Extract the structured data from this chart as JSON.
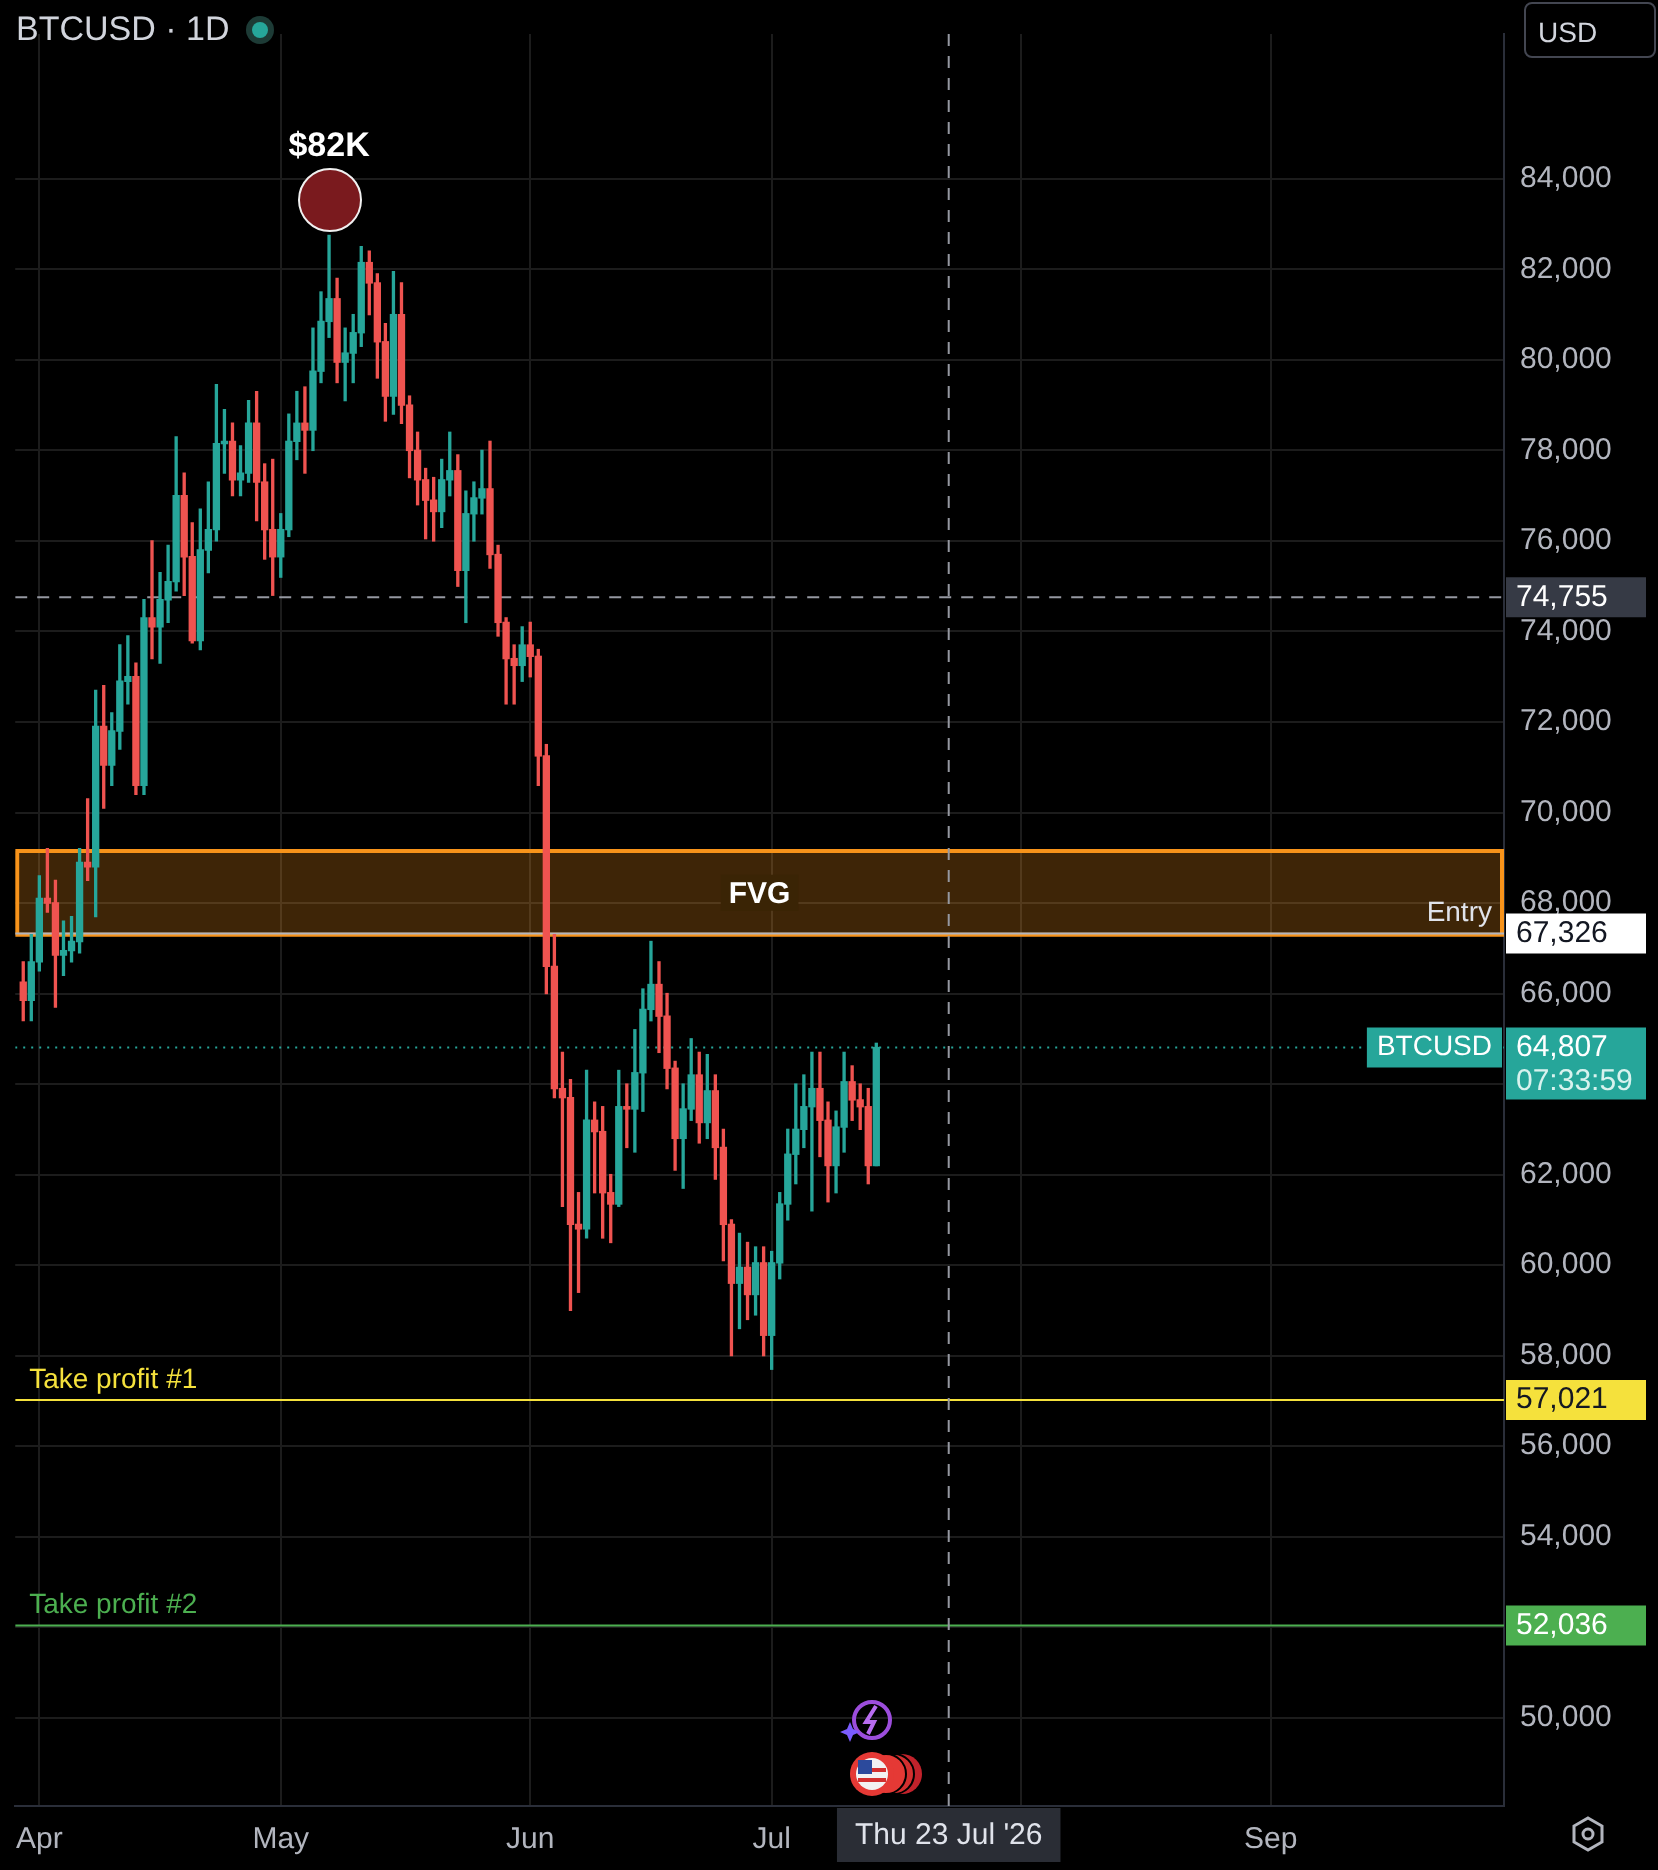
{
  "chart_data": {
    "type": "candlestick",
    "title": "BTCUSD · 1D",
    "x": [
      "2026-03-30",
      "2026-03-31",
      "2026-04-01",
      "2026-04-02",
      "2026-04-03",
      "2026-04-04",
      "2026-04-05",
      "2026-04-06",
      "2026-04-07",
      "2026-04-08",
      "2026-04-09",
      "2026-04-10",
      "2026-04-11",
      "2026-04-12",
      "2026-04-13",
      "2026-04-14",
      "2026-04-15",
      "2026-04-16",
      "2026-04-17",
      "2026-04-18",
      "2026-04-19",
      "2026-04-20",
      "2026-04-21",
      "2026-04-22",
      "2026-04-23",
      "2026-04-24",
      "2026-04-25",
      "2026-04-26",
      "2026-04-27",
      "2026-04-28",
      "2026-04-29",
      "2026-04-30",
      "2026-05-01",
      "2026-05-02",
      "2026-05-03",
      "2026-05-04",
      "2026-05-05",
      "2026-05-06",
      "2026-05-07",
      "2026-05-08",
      "2026-05-09",
      "2026-05-10",
      "2026-05-11",
      "2026-05-12",
      "2026-05-13",
      "2026-05-14",
      "2026-05-15",
      "2026-05-16",
      "2026-05-17",
      "2026-05-18",
      "2026-05-19",
      "2026-05-20",
      "2026-05-21",
      "2026-05-22",
      "2026-05-23",
      "2026-05-24",
      "2026-05-25",
      "2026-05-26",
      "2026-05-27",
      "2026-05-28",
      "2026-05-29",
      "2026-05-30",
      "2026-05-31",
      "2026-06-01",
      "2026-06-02",
      "2026-06-03",
      "2026-06-04",
      "2026-06-05",
      "2026-06-06",
      "2026-06-07",
      "2026-06-08",
      "2026-06-09",
      "2026-06-10",
      "2026-06-11",
      "2026-06-12",
      "2026-06-13",
      "2026-06-14",
      "2026-06-15",
      "2026-06-16",
      "2026-06-17",
      "2026-06-18",
      "2026-06-19",
      "2026-06-20",
      "2026-06-21",
      "2026-06-22",
      "2026-06-23",
      "2026-06-24",
      "2026-06-25",
      "2026-06-26",
      "2026-06-27",
      "2026-06-28",
      "2026-06-29",
      "2026-06-30",
      "2026-07-01",
      "2026-07-02",
      "2026-07-03",
      "2026-07-04",
      "2026-07-05",
      "2026-07-06",
      "2026-07-07",
      "2026-07-08",
      "2026-07-09",
      "2026-07-10",
      "2026-07-11",
      "2026-07-12",
      "2026-07-13",
      "2026-07-14"
    ],
    "ohlc": [
      [
        66250,
        66700,
        65400,
        65850
      ],
      [
        65850,
        67300,
        65400,
        66700
      ],
      [
        66700,
        68600,
        66500,
        68100
      ],
      [
        68100,
        69200,
        67800,
        68000
      ],
      [
        68000,
        68500,
        65700,
        66850
      ],
      [
        66850,
        67600,
        66400,
        66950
      ],
      [
        66950,
        67700,
        66700,
        67150
      ],
      [
        67150,
        69200,
        66900,
        68900
      ],
      [
        68900,
        70300,
        68500,
        68800
      ],
      [
        68800,
        72700,
        67700,
        71900
      ],
      [
        71900,
        72800,
        70100,
        71050
      ],
      [
        71050,
        72200,
        70600,
        71800
      ],
      [
        71800,
        73700,
        71400,
        72900
      ],
      [
        72900,
        73900,
        72400,
        73000
      ],
      [
        73000,
        73300,
        70400,
        70600
      ],
      [
        70600,
        74700,
        70400,
        74300
      ],
      [
        74300,
        76000,
        73400,
        74100
      ],
      [
        74100,
        75300,
        73300,
        74700
      ],
      [
        74700,
        75900,
        74200,
        75100
      ],
      [
        75100,
        78300,
        74900,
        77000
      ],
      [
        77000,
        77500,
        74800,
        75650
      ],
      [
        75650,
        76400,
        73750,
        73800
      ],
      [
        73800,
        76700,
        73600,
        75800
      ],
      [
        75800,
        77300,
        75300,
        76250
      ],
      [
        76250,
        79450,
        76000,
        78150
      ],
      [
        78150,
        78900,
        77500,
        78200
      ],
      [
        78200,
        78600,
        77000,
        77350
      ],
      [
        77350,
        78100,
        77000,
        77500
      ],
      [
        77500,
        79100,
        77300,
        78600
      ],
      [
        78600,
        79300,
        76450,
        77300
      ],
      [
        77300,
        77700,
        75600,
        76250
      ],
      [
        76250,
        77800,
        74800,
        75650
      ],
      [
        75650,
        76600,
        75200,
        76250
      ],
      [
        76250,
        78800,
        76100,
        78200
      ],
      [
        78200,
        79300,
        77800,
        78600
      ],
      [
        78600,
        79400,
        77500,
        78450
      ],
      [
        78450,
        80700,
        78000,
        79750
      ],
      [
        79750,
        81500,
        79500,
        80850
      ],
      [
        80850,
        82750,
        80500,
        81350
      ],
      [
        81350,
        81800,
        79500,
        79950
      ],
      [
        79950,
        80700,
        79100,
        80150
      ],
      [
        80150,
        81000,
        79500,
        80600
      ],
      [
        80600,
        82500,
        80300,
        82150
      ],
      [
        82150,
        82400,
        81000,
        81700
      ],
      [
        81700,
        81900,
        79600,
        80400
      ],
      [
        80400,
        80800,
        78650,
        79200
      ],
      [
        79200,
        81950,
        78800,
        81000
      ],
      [
        81000,
        81700,
        78600,
        79000
      ],
      [
        79000,
        79200,
        77400,
        78000
      ],
      [
        78000,
        78400,
        76800,
        77350
      ],
      [
        77350,
        77600,
        76050,
        76900
      ],
      [
        76900,
        77400,
        76000,
        76650
      ],
      [
        76650,
        77800,
        76300,
        77350
      ],
      [
        77350,
        78400,
        77000,
        77550
      ],
      [
        77550,
        77900,
        75000,
        75350
      ],
      [
        75350,
        77100,
        74200,
        76600
      ],
      [
        76600,
        77300,
        76000,
        76950
      ],
      [
        76950,
        78000,
        76600,
        77150
      ],
      [
        77150,
        78200,
        75400,
        75700
      ],
      [
        75700,
        75900,
        73900,
        74200
      ],
      [
        74200,
        74300,
        72400,
        73400
      ],
      [
        73400,
        73700,
        72400,
        73250
      ],
      [
        73250,
        74100,
        72900,
        73700
      ],
      [
        73700,
        74200,
        73000,
        73450
      ],
      [
        73450,
        73600,
        70600,
        71250
      ],
      [
        71250,
        71500,
        66000,
        66600
      ],
      [
        66600,
        67300,
        63700,
        63900
      ],
      [
        63900,
        64700,
        61300,
        63700
      ],
      [
        63700,
        64100,
        59000,
        60900
      ],
      [
        60900,
        61600,
        59400,
        60800
      ],
      [
        60800,
        64300,
        60600,
        63200
      ],
      [
        63200,
        63600,
        61600,
        62950
      ],
      [
        62950,
        63500,
        60600,
        61600
      ],
      [
        61600,
        62000,
        60500,
        61350
      ],
      [
        61350,
        64300,
        61300,
        63500
      ],
      [
        63500,
        64000,
        62600,
        63450
      ],
      [
        63450,
        65200,
        62500,
        64250
      ],
      [
        64250,
        66100,
        63400,
        65650
      ],
      [
        65650,
        67150,
        65400,
        66200
      ],
      [
        66200,
        66700,
        64700,
        65500
      ],
      [
        65500,
        66000,
        63900,
        64350
      ],
      [
        64350,
        64500,
        62100,
        62800
      ],
      [
        62800,
        64000,
        61700,
        63450
      ],
      [
        63450,
        65000,
        63200,
        64200
      ],
      [
        64200,
        64700,
        62700,
        63150
      ],
      [
        63150,
        64650,
        62800,
        63850
      ],
      [
        63850,
        64200,
        61900,
        62600
      ],
      [
        62600,
        63000,
        60100,
        60900
      ],
      [
        60900,
        61000,
        58000,
        59600
      ],
      [
        59600,
        60700,
        58600,
        59950
      ],
      [
        59950,
        60500,
        58800,
        59350
      ],
      [
        59350,
        60400,
        58900,
        60050
      ],
      [
        60050,
        60400,
        58000,
        58450
      ],
      [
        58450,
        60300,
        57700,
        60050
      ],
      [
        60050,
        61600,
        59700,
        61350
      ],
      [
        61350,
        63000,
        61000,
        62450
      ],
      [
        62450,
        64000,
        61800,
        63000
      ],
      [
        63000,
        64200,
        62600,
        63500
      ],
      [
        63500,
        64700,
        61200,
        63900
      ],
      [
        63900,
        64700,
        62400,
        63200
      ],
      [
        63200,
        63600,
        61400,
        62200
      ],
      [
        62200,
        63400,
        61600,
        63050
      ],
      [
        63050,
        64700,
        62500,
        64050
      ],
      [
        64050,
        64400,
        63200,
        63650
      ],
      [
        63650,
        64000,
        63000,
        63500
      ],
      [
        63500,
        63900,
        61800,
        62200
      ],
      [
        62200,
        64900,
        62200,
        64807
      ]
    ],
    "colors": [
      "#ef5350",
      "#26a69a",
      "#26a69a",
      "#ef5350",
      "#ef5350",
      "#26a69a",
      "#26a69a",
      "#26a69a",
      "#ef5350",
      "#26a69a",
      "#ef5350",
      "#26a69a",
      "#26a69a",
      "#26a69a",
      "#ef5350",
      "#26a69a",
      "#ef5350",
      "#26a69a",
      "#26a69a",
      "#26a69a",
      "#ef5350",
      "#ef5350",
      "#26a69a",
      "#26a69a",
      "#26a69a",
      "#26a69a",
      "#ef5350",
      "#26a69a",
      "#26a69a",
      "#ef5350",
      "#ef5350",
      "#ef5350",
      "#26a69a",
      "#26a69a",
      "#26a69a",
      "#ef5350",
      "#26a69a",
      "#26a69a",
      "#26a69a",
      "#ef5350",
      "#26a69a",
      "#26a69a",
      "#26a69a",
      "#ef5350",
      "#ef5350",
      "#ef5350",
      "#26a69a",
      "#ef5350",
      "#ef5350",
      "#ef5350",
      "#ef5350",
      "#ef5350",
      "#26a69a",
      "#26a69a",
      "#ef5350",
      "#26a69a",
      "#26a69a",
      "#26a69a",
      "#ef5350",
      "#ef5350",
      "#ef5350",
      "#ef5350",
      "#26a69a",
      "#ef5350",
      "#ef5350",
      "#ef5350",
      "#ef5350",
      "#ef5350",
      "#ef5350",
      "#ef5350",
      "#26a69a",
      "#ef5350",
      "#ef5350",
      "#ef5350",
      "#26a69a",
      "#ef5350",
      "#26a69a",
      "#26a69a",
      "#26a69a",
      "#ef5350",
      "#ef5350",
      "#ef5350",
      "#26a69a",
      "#26a69a",
      "#ef5350",
      "#26a69a",
      "#ef5350",
      "#ef5350",
      "#ef5350",
      "#26a69a",
      "#ef5350",
      "#26a69a",
      "#ef5350",
      "#26a69a",
      "#26a69a",
      "#26a69a",
      "#26a69a",
      "#26a69a",
      "#26a69a",
      "#ef5350",
      "#ef5350",
      "#26a69a",
      "#26a69a",
      "#ef5350",
      "#ef5350",
      "#ef5350",
      "#26a69a"
    ],
    "xlim": [
      "2026-03-29",
      "2026-09-30"
    ],
    "xticks": [
      {
        "value": "2026-04-01",
        "label": "Apr"
      },
      {
        "value": "2026-05-01",
        "label": "May"
      },
      {
        "value": "2026-06-01",
        "label": "Jun"
      },
      {
        "value": "2026-07-01",
        "label": "Jul"
      },
      {
        "value": "2026-08-01",
        "label": null
      },
      {
        "value": "2026-09-01",
        "label": "Sep"
      }
    ],
    "ylim": [
      48050,
      87200
    ],
    "yticks": [
      {
        "value": 50000,
        "label": "50,000"
      },
      {
        "value": 52000,
        "label": null
      },
      {
        "value": 54000,
        "label": "54,000"
      },
      {
        "value": 56000,
        "label": "56,000"
      },
      {
        "value": 58000,
        "label": "58,000"
      },
      {
        "value": 60000,
        "label": "60,000"
      },
      {
        "value": 62000,
        "label": "62,000"
      },
      {
        "value": 64000,
        "label": null
      },
      {
        "value": 66000,
        "label": "66,000"
      },
      {
        "value": 68000,
        "label": "68,000"
      },
      {
        "value": 70000,
        "label": "70,000"
      },
      {
        "value": 72000,
        "label": "72,000"
      },
      {
        "value": 74000,
        "label": "74,000"
      },
      {
        "value": 76000,
        "label": "76,000"
      },
      {
        "value": 78000,
        "label": "78,000"
      },
      {
        "value": 80000,
        "label": "80,000"
      },
      {
        "value": 82000,
        "label": "82,000"
      },
      {
        "value": 84000,
        "label": "84,000"
      }
    ],
    "grid": true,
    "bands": [
      {
        "axis": "y",
        "from": 67300,
        "to": 69150,
        "label": "FVG",
        "color": "#f7931a"
      }
    ],
    "ref_lines": [
      {
        "axis": "y",
        "value": 67326,
        "label": "67,326",
        "color": "#b2b5be"
      },
      {
        "axis": "y",
        "value": 57021,
        "label": "57,021",
        "color": "#f5e13c"
      },
      {
        "axis": "y",
        "value": 52036,
        "label": "52,036",
        "color": "#4caf50"
      },
      {
        "axis": "y",
        "value": 64807,
        "label": "64,807",
        "color": "#26a69a",
        "line_style": "dotted"
      },
      {
        "axis": "y",
        "value": 74755,
        "label": "74,755",
        "color": "#9598a1",
        "line_style": "dashed"
      },
      {
        "axis": "x",
        "value": "2026-07-23",
        "label": "Thu 23 Jul '26",
        "color": "#9598a1",
        "line_style": "dashed"
      }
    ],
    "annotations": [
      {
        "text": "$82K",
        "x": "2026-05-07",
        "y": 82750
      },
      {
        "text": "Entry",
        "y": 67326
      },
      {
        "text": "Take profit #1",
        "y": 57021
      },
      {
        "text": "Take profit #2",
        "y": 52036
      },
      {
        "text": "BTCUSD",
        "y": 64807
      },
      "07:33:59",
      "USD"
    ]
  }
}
